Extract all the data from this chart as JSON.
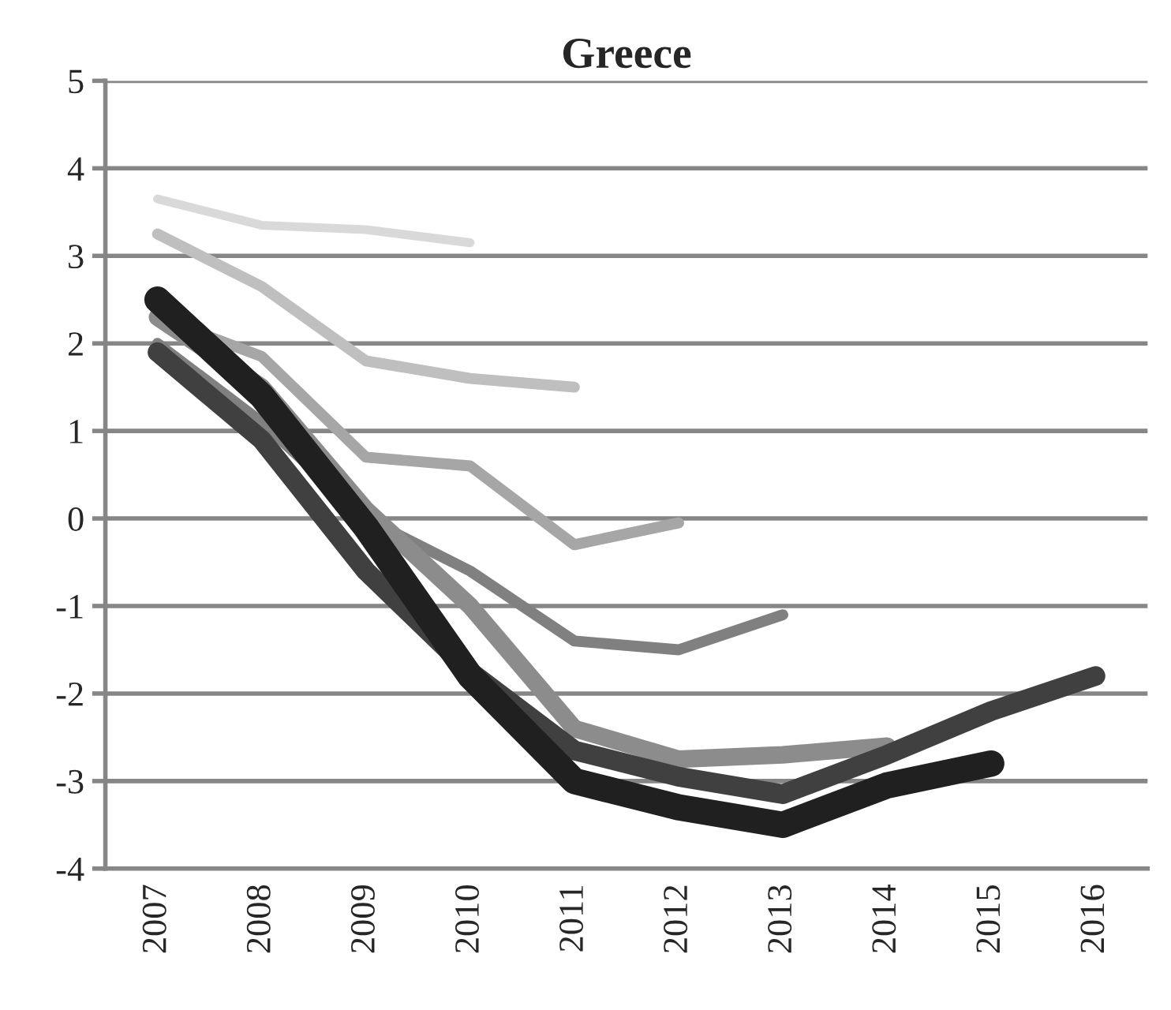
{
  "chart_data": {
    "type": "line",
    "title": "Greece",
    "categories": [
      "2007",
      "2008",
      "2009",
      "2010",
      "2011",
      "2012",
      "2013",
      "2014",
      "2015",
      "2016"
    ],
    "series": [
      {
        "color": "#d9d9d9",
        "values": [
          3.65,
          3.35,
          3.3,
          3.15,
          null,
          null,
          null,
          null,
          null,
          null
        ]
      },
      {
        "color": "#bfbfbf",
        "values": [
          3.25,
          2.65,
          1.8,
          1.6,
          1.5,
          null,
          null,
          null,
          null,
          null
        ]
      },
      {
        "color": "#a6a6a6",
        "values": [
          2.3,
          1.85,
          0.7,
          0.6,
          -0.3,
          -0.05,
          null,
          null,
          null,
          null
        ]
      },
      {
        "color": "#808080",
        "values": [
          2.0,
          1.1,
          0.0,
          -0.6,
          -1.4,
          -1.5,
          -1.1,
          null,
          null,
          null
        ]
      },
      {
        "color": "#8c8c8c",
        "values": [
          2.3,
          1.5,
          0.1,
          -1.0,
          -2.4,
          -2.75,
          -2.7,
          -2.6,
          null,
          null
        ]
      },
      {
        "color": "#404040",
        "values": [
          1.9,
          0.9,
          -0.6,
          -1.75,
          -2.65,
          -2.95,
          -3.15,
          -2.7,
          -2.2,
          -1.8
        ]
      },
      {
        "color": "#202020",
        "values": [
          2.5,
          1.4,
          -0.1,
          -1.8,
          -3.0,
          -3.3,
          -3.5,
          -3.05,
          -2.8,
          null
        ]
      }
    ],
    "ylim": [
      -4,
      5
    ],
    "yticks": [
      -4,
      -3,
      -2,
      -1,
      0,
      1,
      2,
      3,
      4,
      5
    ],
    "grid": "y",
    "line_style": "solid",
    "marker": "none"
  }
}
